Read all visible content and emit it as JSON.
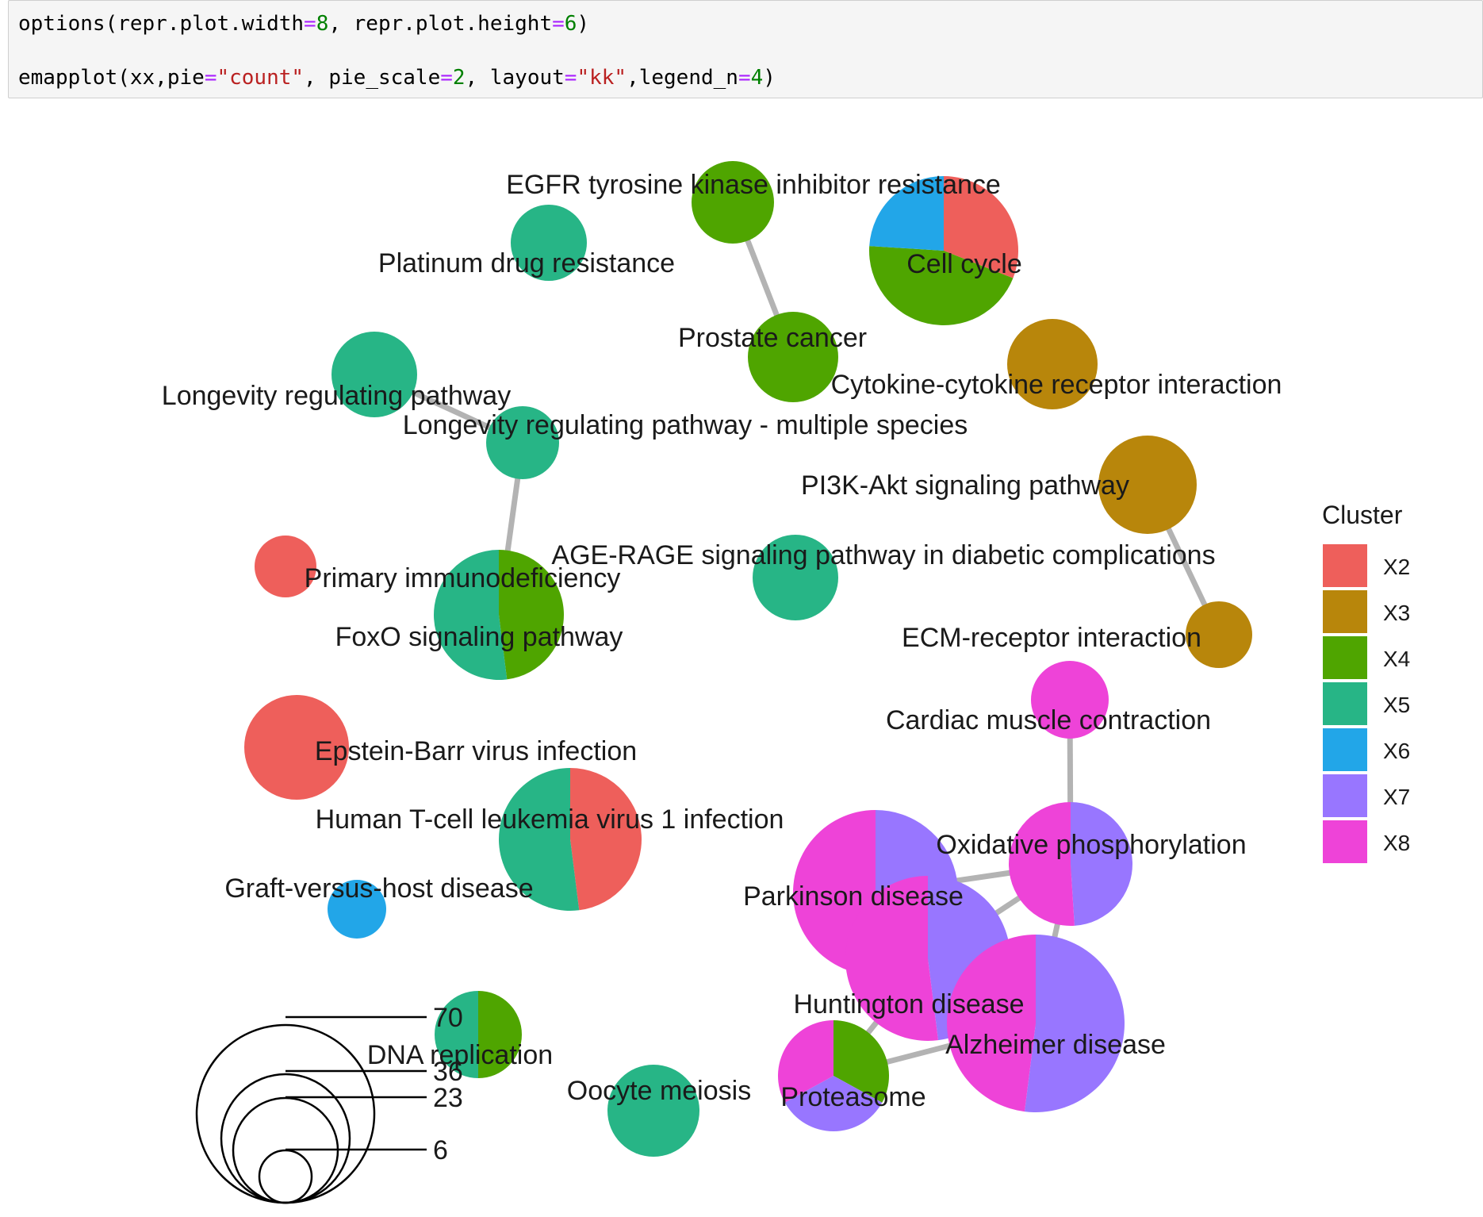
{
  "code_cell": {
    "lines": [
      [
        {
          "t": "options(repr.plot.width",
          "k": "plain"
        },
        {
          "t": "=",
          "k": "eq"
        },
        {
          "t": "8",
          "k": "num"
        },
        {
          "t": ", repr.plot.height",
          "k": "plain"
        },
        {
          "t": "=",
          "k": "eq"
        },
        {
          "t": "6",
          "k": "num"
        },
        {
          "t": ")",
          "k": "plain"
        }
      ],
      [
        {
          "t": "emapplot(xx,pie",
          "k": "plain"
        },
        {
          "t": "=",
          "k": "eq"
        },
        {
          "t": "\"count\"",
          "k": "str"
        },
        {
          "t": ", pie_scale",
          "k": "plain"
        },
        {
          "t": "=",
          "k": "eq"
        },
        {
          "t": "2",
          "k": "num"
        },
        {
          "t": ", layout",
          "k": "plain"
        },
        {
          "t": "=",
          "k": "eq"
        },
        {
          "t": "\"kk\"",
          "k": "str"
        },
        {
          "t": ",legend_n",
          "k": "plain"
        },
        {
          "t": "=",
          "k": "eq"
        },
        {
          "t": "4",
          "k": "num"
        },
        {
          "t": ")",
          "k": "plain"
        }
      ]
    ]
  },
  "plot": {
    "legend": {
      "title": "Cluster",
      "items": [
        {
          "label": "X2",
          "color": "#ee5f5b"
        },
        {
          "label": "X3",
          "color": "#b8860b"
        },
        {
          "label": "X4",
          "color": "#4fa500"
        },
        {
          "label": "X5",
          "color": "#27b586"
        },
        {
          "label": "X6",
          "color": "#22a6e8"
        },
        {
          "label": "X7",
          "color": "#9876ff"
        },
        {
          "label": "X8",
          "color": "#ee43d8"
        }
      ]
    },
    "size_legend": {
      "values": [
        "70",
        "36",
        "23",
        "6"
      ]
    },
    "nodes": [
      {
        "id": "egfr",
        "label": "EGFR tyrosine kinase inhibitor resistance",
        "slices": [
          {
            "cluster": "X4",
            "frac": 1
          }
        ]
      },
      {
        "id": "platinum",
        "label": "Platinum drug resistance",
        "slices": [
          {
            "cluster": "X5",
            "frac": 1
          }
        ]
      },
      {
        "id": "cellcycle",
        "label": "Cell cycle",
        "slices": [
          {
            "cluster": "X2",
            "frac": 0.31
          },
          {
            "cluster": "X4",
            "frac": 0.45
          },
          {
            "cluster": "X6",
            "frac": 0.24
          }
        ]
      },
      {
        "id": "prostate",
        "label": "Prostate cancer",
        "slices": [
          {
            "cluster": "X4",
            "frac": 1
          }
        ]
      },
      {
        "id": "cytokine",
        "label": "Cytokine-cytokine receptor interaction",
        "slices": [
          {
            "cluster": "X3",
            "frac": 1
          }
        ]
      },
      {
        "id": "longevity",
        "label": "Longevity regulating pathway",
        "slices": [
          {
            "cluster": "X5",
            "frac": 1
          }
        ]
      },
      {
        "id": "longevity_ms",
        "label": "Longevity regulating pathway - multiple species",
        "slices": [
          {
            "cluster": "X5",
            "frac": 1
          }
        ]
      },
      {
        "id": "pi3k",
        "label": "PI3K-Akt signaling pathway",
        "slices": [
          {
            "cluster": "X3",
            "frac": 1
          }
        ]
      },
      {
        "id": "primary_immuno",
        "label": "Primary immunodeficiency",
        "slices": [
          {
            "cluster": "X2",
            "frac": 1
          }
        ]
      },
      {
        "id": "agerage",
        "label": "AGE-RAGE signaling pathway in diabetic complications",
        "slices": [
          {
            "cluster": "X5",
            "frac": 1
          }
        ]
      },
      {
        "id": "foxo",
        "label": "FoxO signaling pathway",
        "slices": [
          {
            "cluster": "X4",
            "frac": 0.48
          },
          {
            "cluster": "X5",
            "frac": 0.52
          }
        ]
      },
      {
        "id": "ecm",
        "label": "ECM-receptor interaction",
        "slices": [
          {
            "cluster": "X3",
            "frac": 1
          }
        ]
      },
      {
        "id": "cardiac",
        "label": "Cardiac muscle contraction",
        "slices": [
          {
            "cluster": "X8",
            "frac": 1
          }
        ]
      },
      {
        "id": "ebv",
        "label": "Epstein-Barr virus infection",
        "slices": [
          {
            "cluster": "X2",
            "frac": 1
          }
        ]
      },
      {
        "id": "htlv",
        "label": "Human T-cell leukemia virus 1 infection",
        "slices": [
          {
            "cluster": "X2",
            "frac": 0.48
          },
          {
            "cluster": "X5",
            "frac": 0.52
          }
        ]
      },
      {
        "id": "oxphos",
        "label": "Oxidative phosphorylation",
        "slices": [
          {
            "cluster": "X7",
            "frac": 0.49
          },
          {
            "cluster": "X8",
            "frac": 0.51
          }
        ]
      },
      {
        "id": "parkinson",
        "label": "Parkinson disease",
        "slices": [
          {
            "cluster": "X7",
            "frac": 0.42
          },
          {
            "cluster": "X8",
            "frac": 0.58
          }
        ]
      },
      {
        "id": "graft",
        "label": "Graft-versus-host disease",
        "slices": [
          {
            "cluster": "X6",
            "frac": 1
          }
        ]
      },
      {
        "id": "huntington",
        "label": "Huntington disease",
        "slices": [
          {
            "cluster": "X7",
            "frac": 0.48
          },
          {
            "cluster": "X8",
            "frac": 0.52
          }
        ]
      },
      {
        "id": "alzheimer",
        "label": "Alzheimer disease",
        "slices": [
          {
            "cluster": "X7",
            "frac": 0.52
          },
          {
            "cluster": "X8",
            "frac": 0.48
          }
        ]
      },
      {
        "id": "dna",
        "label": "DNA replication",
        "slices": [
          {
            "cluster": "X4",
            "frac": 0.5
          },
          {
            "cluster": "X5",
            "frac": 0.5
          }
        ]
      },
      {
        "id": "oocyte",
        "label": "Oocyte meiosis",
        "slices": [
          {
            "cluster": "X5",
            "frac": 1
          }
        ]
      },
      {
        "id": "proteasome",
        "label": "Proteasome",
        "slices": [
          {
            "cluster": "X4",
            "frac": 0.33
          },
          {
            "cluster": "X7",
            "frac": 0.34
          },
          {
            "cluster": "X8",
            "frac": 0.33
          }
        ]
      }
    ],
    "edges": [
      [
        "egfr",
        "prostate"
      ],
      [
        "longevity",
        "longevity_ms"
      ],
      [
        "longevity_ms",
        "foxo"
      ],
      [
        "pi3k",
        "ecm"
      ],
      [
        "cardiac",
        "oxphos"
      ],
      [
        "oxphos",
        "parkinson"
      ],
      [
        "oxphos",
        "huntington"
      ],
      [
        "oxphos",
        "alzheimer"
      ],
      [
        "parkinson",
        "huntington"
      ],
      [
        "huntington",
        "alzheimer"
      ],
      [
        "parkinson",
        "alzheimer"
      ],
      [
        "huntington",
        "proteasome"
      ],
      [
        "alzheimer",
        "proteasome"
      ]
    ]
  }
}
